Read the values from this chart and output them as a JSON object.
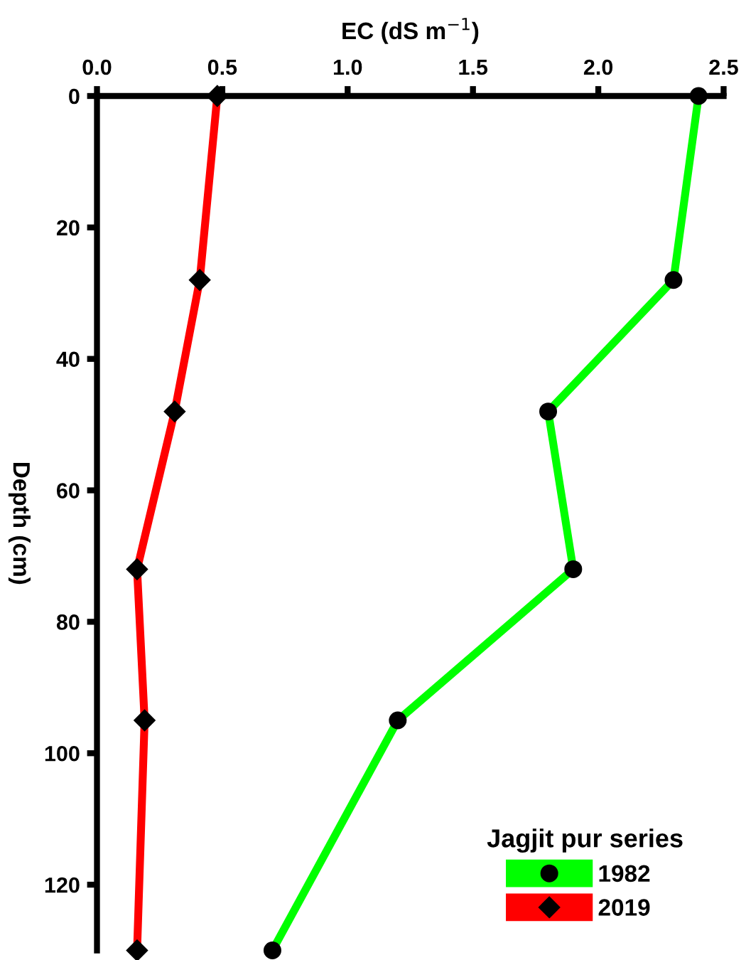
{
  "chart_data": {
    "type": "line",
    "xlabel": "EC (dS m$^{−1}$)",
    "ylabel": "Depth (cm)",
    "legend_title": "Jagjit pur series",
    "legend": "bottom right",
    "grid": false,
    "line_style": "solid",
    "xlim": [
      0,
      2.5
    ],
    "xticks": [
      {
        "value": 0,
        "label": "0.0"
      },
      0.5,
      {
        "value": 1,
        "label": "1.0"
      },
      1.5,
      {
        "value": 2,
        "label": "2.0"
      },
      2.5
    ],
    "ylim": [
      130,
      0
    ],
    "yticks": [
      0,
      20,
      40,
      60,
      80,
      100,
      120
    ],
    "series": [
      {
        "name": "1982",
        "color": "#00ff00",
        "marker": "circle",
        "x": [
          2.4,
          2.3,
          1.8,
          1.9,
          1.2,
          0.7
        ],
        "values": [
          0,
          28,
          48,
          72,
          95,
          130
        ]
      },
      {
        "name": "2019",
        "color": "#ff0000",
        "marker": "diamond",
        "x": [
          0.48,
          0.41,
          0.31,
          0.16,
          0.19,
          0.16
        ],
        "values": [
          0,
          28,
          48,
          72,
          95,
          130
        ]
      }
    ]
  }
}
